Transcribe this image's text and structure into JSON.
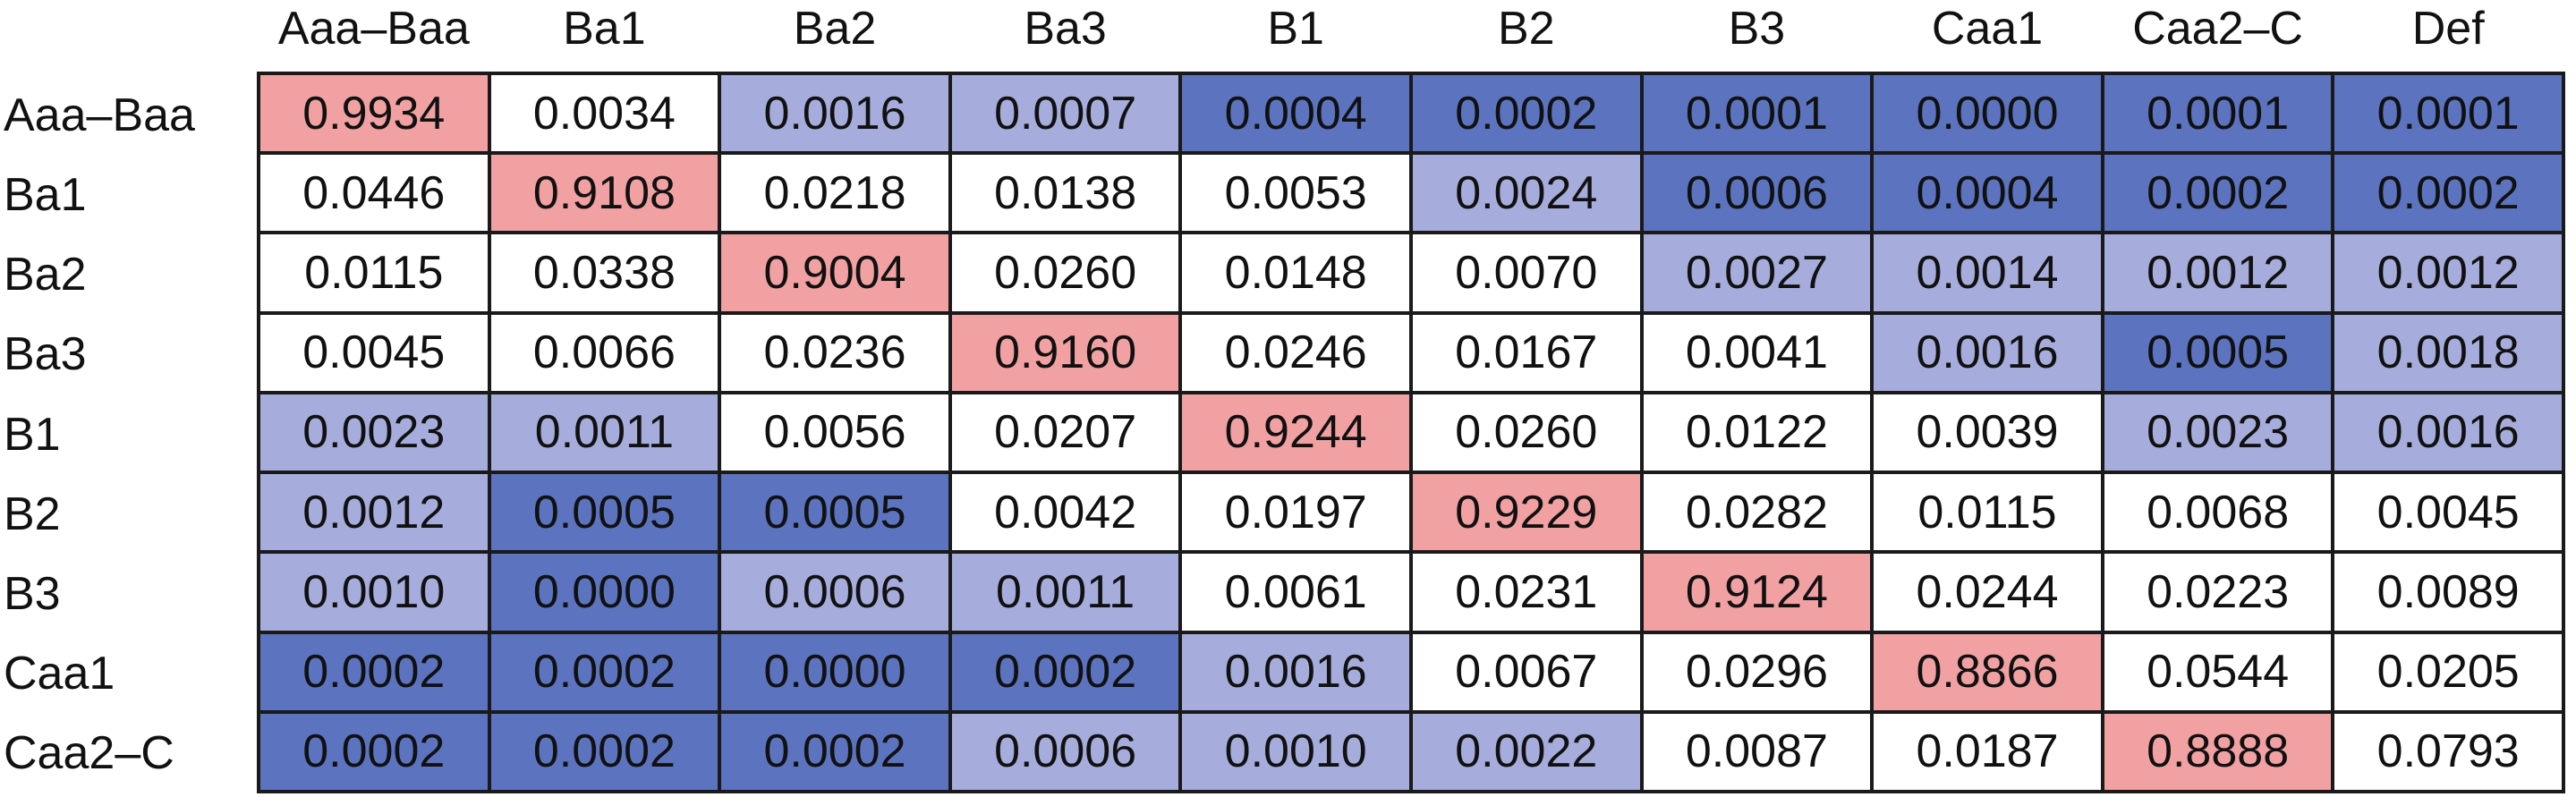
{
  "chart_data": {
    "type": "heatmap",
    "title": "",
    "xlabel": "",
    "ylabel": "",
    "columns": [
      "Aaa–Baa",
      "Ba1",
      "Ba2",
      "Ba3",
      "B1",
      "B2",
      "B3",
      "Caa1",
      "Caa2–C",
      "Def"
    ],
    "rows": [
      "Aaa–Baa",
      "Ba1",
      "Ba2",
      "Ba3",
      "B1",
      "B2",
      "B3",
      "Caa1",
      "Caa2–C"
    ],
    "values": [
      [
        "0.9934",
        "0.0034",
        "0.0016",
        "0.0007",
        "0.0004",
        "0.0002",
        "0.0001",
        "0.0000",
        "0.0001",
        "0.0001"
      ],
      [
        "0.0446",
        "0.9108",
        "0.0218",
        "0.0138",
        "0.0053",
        "0.0024",
        "0.0006",
        "0.0004",
        "0.0002",
        "0.0002"
      ],
      [
        "0.0115",
        "0.0338",
        "0.9004",
        "0.0260",
        "0.0148",
        "0.0070",
        "0.0027",
        "0.0014",
        "0.0012",
        "0.0012"
      ],
      [
        "0.0045",
        "0.0066",
        "0.0236",
        "0.9160",
        "0.0246",
        "0.0167",
        "0.0041",
        "0.0016",
        "0.0005",
        "0.0018"
      ],
      [
        "0.0023",
        "0.0011",
        "0.0056",
        "0.0207",
        "0.9244",
        "0.0260",
        "0.0122",
        "0.0039",
        "0.0023",
        "0.0016"
      ],
      [
        "0.0012",
        "0.0005",
        "0.0005",
        "0.0042",
        "0.0197",
        "0.9229",
        "0.0282",
        "0.0115",
        "0.0068",
        "0.0045"
      ],
      [
        "0.0010",
        "0.0000",
        "0.0006",
        "0.0011",
        "0.0061",
        "0.0231",
        "0.9124",
        "0.0244",
        "0.0223",
        "0.0089"
      ],
      [
        "0.0002",
        "0.0002",
        "0.0000",
        "0.0002",
        "0.0016",
        "0.0067",
        "0.0296",
        "0.8866",
        "0.0544",
        "0.0205"
      ],
      [
        "0.0002",
        "0.0002",
        "0.0002",
        "0.0006",
        "0.0010",
        "0.0022",
        "0.0087",
        "0.0187",
        "0.8888",
        "0.0793"
      ]
    ],
    "shading": [
      [
        "pink",
        "white",
        "light",
        "light",
        "dark",
        "dark",
        "dark",
        "dark",
        "dark",
        "dark"
      ],
      [
        "white",
        "pink",
        "white",
        "white",
        "white",
        "light",
        "dark",
        "dark",
        "dark",
        "dark"
      ],
      [
        "white",
        "white",
        "pink",
        "white",
        "white",
        "white",
        "light",
        "light",
        "light",
        "light"
      ],
      [
        "white",
        "white",
        "white",
        "pink",
        "white",
        "white",
        "white",
        "light",
        "dark",
        "light"
      ],
      [
        "light",
        "light",
        "white",
        "white",
        "pink",
        "white",
        "white",
        "white",
        "light",
        "light"
      ],
      [
        "light",
        "dark",
        "dark",
        "white",
        "white",
        "pink",
        "white",
        "white",
        "white",
        "white"
      ],
      [
        "light",
        "dark",
        "light",
        "light",
        "white",
        "white",
        "pink",
        "white",
        "white",
        "white"
      ],
      [
        "dark",
        "dark",
        "dark",
        "dark",
        "light",
        "white",
        "white",
        "pink",
        "white",
        "white"
      ],
      [
        "dark",
        "dark",
        "dark",
        "light",
        "light",
        "light",
        "white",
        "white",
        "pink",
        "white"
      ]
    ],
    "colors": {
      "pink": "#F2A1A3",
      "light": "#A6ADDC",
      "dark": "#5C73BF",
      "white": "#FFFFFF",
      "grid": "#1A1A1A"
    },
    "legend": "none",
    "grid": true
  }
}
